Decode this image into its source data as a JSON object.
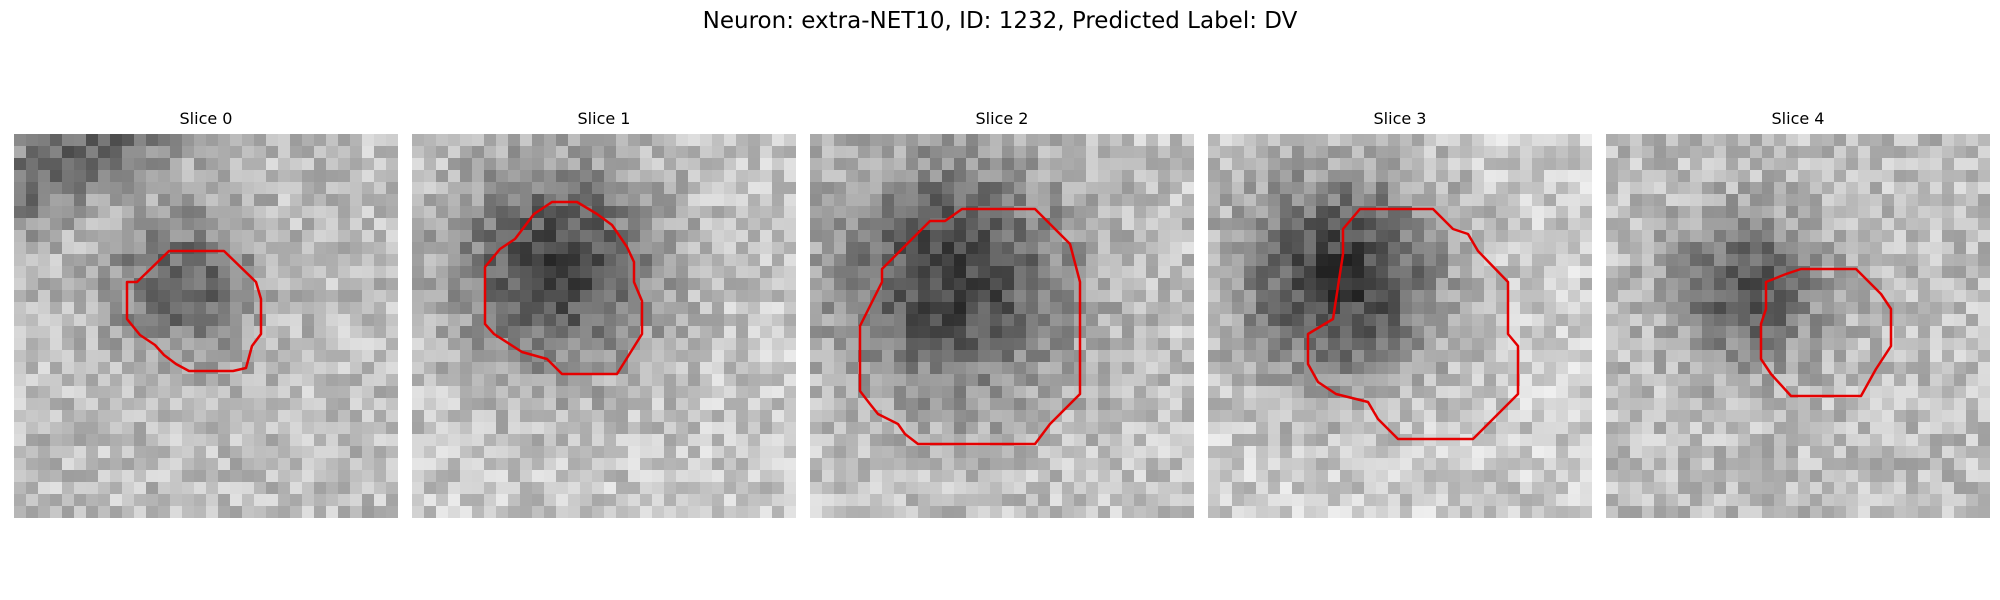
{
  "figure": {
    "title": "Neuron: extra-NET10, ID: 1232, Predicted Label: DV"
  },
  "colors": {
    "contour": "#e50000",
    "background": "#ffffff"
  },
  "slices": [
    {
      "title": "Slice 0"
    },
    {
      "title": "Slice 1"
    },
    {
      "title": "Slice 2"
    },
    {
      "title": "Slice 3"
    },
    {
      "title": "Slice 4"
    }
  ]
}
